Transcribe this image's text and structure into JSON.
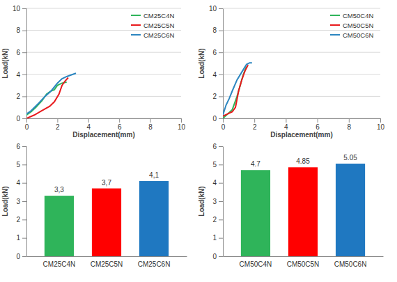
{
  "chart_data": [
    {
      "type": "line",
      "x_label": "Displacement(mm)",
      "y_label": "Load(kN)",
      "xlim": [
        0,
        10
      ],
      "xticks": [
        0,
        2,
        4,
        6,
        8,
        10
      ],
      "ylim": [
        0,
        10
      ],
      "yticks": [
        0,
        2,
        4,
        6,
        8,
        10
      ],
      "grid": true,
      "legend": "upper right",
      "series": [
        {
          "name": "CM25C4N",
          "color": "#2fb45a",
          "x": [
            0,
            0.3,
            0.6,
            1.0,
            1.3,
            1.6,
            1.8,
            2.0,
            2.3,
            2.6
          ],
          "values": [
            0.3,
            0.6,
            1.0,
            1.6,
            2.2,
            2.5,
            2.6,
            3.0,
            3.2,
            3.3
          ]
        },
        {
          "name": "CM25C5N",
          "color": "#e8191c",
          "x": [
            0,
            0.5,
            1.0,
            1.5,
            1.8,
            2.1,
            2.3,
            2.5,
            2.7
          ],
          "values": [
            0,
            0.3,
            0.7,
            1.1,
            1.5,
            2.2,
            3.0,
            3.4,
            3.7
          ]
        },
        {
          "name": "CM25C6N",
          "color": "#2c86c0",
          "x": [
            0,
            0.3,
            0.8,
            1.2,
            1.6,
            2.0,
            2.3,
            2.6,
            3.0,
            3.2
          ],
          "values": [
            0.4,
            0.7,
            1.4,
            2.0,
            2.5,
            3.2,
            3.6,
            3.8,
            4.0,
            4.1
          ]
        }
      ]
    },
    {
      "type": "line",
      "x_label": "Displacement(mm)",
      "y_label": "Load(kN)",
      "xlim": [
        0,
        10
      ],
      "xticks": [
        0,
        2,
        4,
        6,
        8,
        10
      ],
      "ylim": [
        0,
        10
      ],
      "yticks": [
        0,
        2,
        4,
        6,
        8,
        10
      ],
      "grid": true,
      "legend": "upper right",
      "series": [
        {
          "name": "CM50C4N",
          "color": "#2fb45a",
          "x": [
            0,
            0.3,
            0.6,
            0.9,
            1.1,
            1.3,
            1.5
          ],
          "values": [
            0,
            0.4,
            0.8,
            2.0,
            3.0,
            4.0,
            4.7
          ]
        },
        {
          "name": "CM50C5N",
          "color": "#e8191c",
          "x": [
            0,
            0.3,
            0.6,
            0.8,
            1.0,
            1.2,
            1.4,
            1.6
          ],
          "values": [
            0.2,
            0.4,
            0.6,
            1.0,
            2.5,
            3.5,
            4.3,
            4.85
          ]
        },
        {
          "name": "CM50C6N",
          "color": "#2c86c0",
          "x": [
            0,
            0.2,
            0.4,
            0.6,
            0.9,
            1.2,
            1.5,
            1.7,
            1.85
          ],
          "values": [
            0.3,
            1.2,
            1.8,
            2.5,
            3.5,
            4.2,
            4.9,
            5.05,
            5.05
          ]
        }
      ]
    },
    {
      "type": "bar",
      "y_label": "Load(kN)",
      "categories": [
        "CM25C4N",
        "CM25C5N",
        "CM25C6N"
      ],
      "values": [
        3.3,
        3.7,
        4.1
      ],
      "value_labels": [
        "3,3",
        "3,7",
        "4,1"
      ],
      "colors": [
        "#2fb45a",
        "#ff0000",
        "#1f78c1"
      ],
      "ylim": [
        0,
        6
      ],
      "yticks": [
        0,
        1,
        2,
        3,
        4,
        5,
        6
      ],
      "grid": false,
      "data_labels": true
    },
    {
      "type": "bar",
      "y_label": "Load(kN)",
      "categories": [
        "CM50C4N",
        "CM50C5N",
        "CM50C6N"
      ],
      "values": [
        4.7,
        4.85,
        5.05
      ],
      "colors": [
        "#2fb45a",
        "#ff0000",
        "#1f78c1"
      ],
      "ylim": [
        0,
        6
      ],
      "yticks": [
        0,
        1,
        2,
        3,
        4,
        5,
        6
      ],
      "grid": false,
      "data_labels": true
    }
  ]
}
